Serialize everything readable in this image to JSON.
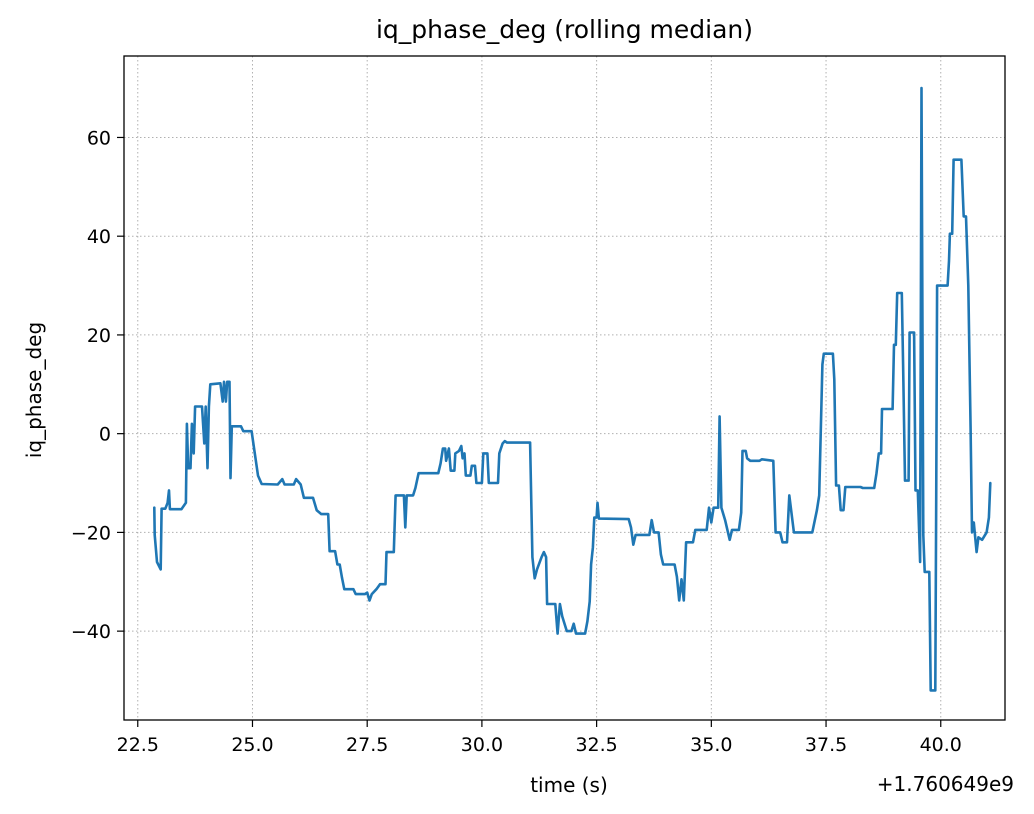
{
  "chart_data": {
    "type": "line",
    "title": "iq_phase_deg (rolling median)",
    "xlabel": "time (s)",
    "ylabel": "iq_phase_deg",
    "x_offset_label": "+1.760649e9",
    "xlim": [
      22.2,
      41.4
    ],
    "ylim": [
      -58,
      76.5
    ],
    "x_ticks": [
      22.5,
      25.0,
      27.5,
      30.0,
      32.5,
      35.0,
      37.5,
      40.0
    ],
    "x_tick_labels": [
      "22.5",
      "25.0",
      "27.5",
      "30.0",
      "32.5",
      "35.0",
      "37.5",
      "40.0"
    ],
    "y_ticks": [
      -40,
      -20,
      0,
      20,
      40,
      60
    ],
    "y_tick_labels": [
      "−40",
      "−20",
      "0",
      "20",
      "40",
      "60"
    ],
    "grid": true,
    "series": [
      {
        "color": "#1f77b4",
        "points": [
          [
            22.86,
            -15
          ],
          [
            22.87,
            -20.5
          ],
          [
            22.92,
            -26
          ],
          [
            23.0,
            -27.5
          ],
          [
            23.02,
            -15.2
          ],
          [
            23.1,
            -15.2
          ],
          [
            23.15,
            -14
          ],
          [
            23.18,
            -11.5
          ],
          [
            23.2,
            -15.3
          ],
          [
            23.45,
            -15.3
          ],
          [
            23.55,
            -14
          ],
          [
            23.57,
            2
          ],
          [
            23.6,
            -7
          ],
          [
            23.65,
            -7
          ],
          [
            23.68,
            2
          ],
          [
            23.72,
            -4
          ],
          [
            23.75,
            5.5
          ],
          [
            23.9,
            5.5
          ],
          [
            23.95,
            -2
          ],
          [
            23.98,
            5.5
          ],
          [
            24.02,
            -7
          ],
          [
            24.05,
            5.5
          ],
          [
            24.08,
            10
          ],
          [
            24.3,
            10.2
          ],
          [
            24.35,
            6.5
          ],
          [
            24.38,
            10.5
          ],
          [
            24.42,
            6.5
          ],
          [
            24.45,
            10.5
          ],
          [
            24.5,
            10.5
          ],
          [
            24.52,
            -9
          ],
          [
            24.55,
            1.5
          ],
          [
            24.75,
            1.5
          ],
          [
            24.8,
            0.5
          ],
          [
            24.98,
            0.5
          ],
          [
            25.05,
            -4
          ],
          [
            25.12,
            -8.5
          ],
          [
            25.2,
            -10.2
          ],
          [
            25.55,
            -10.3
          ],
          [
            25.65,
            -9.2
          ],
          [
            25.7,
            -10.3
          ],
          [
            25.9,
            -10.3
          ],
          [
            25.95,
            -9.2
          ],
          [
            26.05,
            -10.3
          ],
          [
            26.12,
            -13
          ],
          [
            26.32,
            -13
          ],
          [
            26.4,
            -15.5
          ],
          [
            26.5,
            -16.3
          ],
          [
            26.65,
            -16.3
          ],
          [
            26.68,
            -23.8
          ],
          [
            26.8,
            -23.8
          ],
          [
            26.85,
            -26.5
          ],
          [
            26.9,
            -26.5
          ],
          [
            26.95,
            -29.2
          ],
          [
            27.0,
            -31.5
          ],
          [
            27.2,
            -31.5
          ],
          [
            27.25,
            -32.5
          ],
          [
            27.45,
            -32.5
          ],
          [
            27.5,
            -32.2
          ],
          [
            27.55,
            -33.8
          ],
          [
            27.6,
            -32.5
          ],
          [
            27.7,
            -31.5
          ],
          [
            27.78,
            -30.5
          ],
          [
            27.9,
            -30.5
          ],
          [
            27.92,
            -24
          ],
          [
            28.08,
            -24
          ],
          [
            28.12,
            -12.5
          ],
          [
            28.3,
            -12.5
          ],
          [
            28.33,
            -19
          ],
          [
            28.36,
            -12.5
          ],
          [
            28.5,
            -12.5
          ],
          [
            28.55,
            -11
          ],
          [
            28.62,
            -8
          ],
          [
            29.05,
            -8
          ],
          [
            29.1,
            -6
          ],
          [
            29.15,
            -3
          ],
          [
            29.2,
            -3
          ],
          [
            29.22,
            -5.5
          ],
          [
            29.28,
            -3
          ],
          [
            29.32,
            -7.5
          ],
          [
            29.4,
            -7.5
          ],
          [
            29.42,
            -4
          ],
          [
            29.5,
            -3.5
          ],
          [
            29.55,
            -2.5
          ],
          [
            29.58,
            -5
          ],
          [
            29.62,
            -4
          ],
          [
            29.65,
            -8.5
          ],
          [
            29.75,
            -8.5
          ],
          [
            29.78,
            -6.5
          ],
          [
            29.85,
            -6.5
          ],
          [
            29.88,
            -10
          ],
          [
            30.0,
            -10
          ],
          [
            30.03,
            -4
          ],
          [
            30.12,
            -4
          ],
          [
            30.15,
            -10
          ],
          [
            30.35,
            -10
          ],
          [
            30.38,
            -4
          ],
          [
            30.45,
            -2
          ],
          [
            30.5,
            -1.5
          ],
          [
            30.55,
            -1.8
          ],
          [
            31.05,
            -1.8
          ],
          [
            31.1,
            -25
          ],
          [
            31.15,
            -29.3
          ],
          [
            31.2,
            -27.5
          ],
          [
            31.3,
            -25
          ],
          [
            31.35,
            -24
          ],
          [
            31.4,
            -25
          ],
          [
            31.42,
            -34.5
          ],
          [
            31.6,
            -34.5
          ],
          [
            31.65,
            -40.5
          ],
          [
            31.7,
            -34.5
          ],
          [
            31.75,
            -37
          ],
          [
            31.85,
            -40
          ],
          [
            31.95,
            -40
          ],
          [
            32.0,
            -38.5
          ],
          [
            32.05,
            -40.5
          ],
          [
            32.25,
            -40.5
          ],
          [
            32.3,
            -38
          ],
          [
            32.35,
            -34
          ],
          [
            32.38,
            -26.5
          ],
          [
            32.42,
            -23
          ],
          [
            32.45,
            -17
          ],
          [
            32.5,
            -17
          ],
          [
            32.52,
            -14
          ],
          [
            32.55,
            -17.2
          ],
          [
            33.2,
            -17.3
          ],
          [
            33.25,
            -19
          ],
          [
            33.3,
            -22.5
          ],
          [
            33.35,
            -20.5
          ],
          [
            33.65,
            -20.5
          ],
          [
            33.7,
            -17.5
          ],
          [
            33.75,
            -20
          ],
          [
            33.85,
            -20
          ],
          [
            33.9,
            -24.5
          ],
          [
            33.95,
            -26.5
          ],
          [
            34.2,
            -26.5
          ],
          [
            34.25,
            -29
          ],
          [
            34.3,
            -33.8
          ],
          [
            34.35,
            -29.5
          ],
          [
            34.4,
            -33.8
          ],
          [
            34.45,
            -22
          ],
          [
            34.6,
            -22
          ],
          [
            34.65,
            -19.5
          ],
          [
            34.9,
            -19.5
          ],
          [
            34.95,
            -15
          ],
          [
            35.0,
            -18
          ],
          [
            35.05,
            -15
          ],
          [
            35.15,
            -15
          ],
          [
            35.18,
            3.5
          ],
          [
            35.22,
            -15
          ],
          [
            35.3,
            -17.5
          ],
          [
            35.35,
            -19.5
          ],
          [
            35.4,
            -21.5
          ],
          [
            35.45,
            -19.5
          ],
          [
            35.6,
            -19.5
          ],
          [
            35.65,
            -16
          ],
          [
            35.68,
            -3.5
          ],
          [
            35.75,
            -3.5
          ],
          [
            35.78,
            -5
          ],
          [
            35.85,
            -5.5
          ],
          [
            36.05,
            -5.5
          ],
          [
            36.1,
            -5.2
          ],
          [
            36.35,
            -5.5
          ],
          [
            36.4,
            -20
          ],
          [
            36.5,
            -20
          ],
          [
            36.55,
            -22
          ],
          [
            36.65,
            -22
          ],
          [
            36.7,
            -12.5
          ],
          [
            36.8,
            -20
          ],
          [
            37.2,
            -20
          ],
          [
            37.3,
            -15.5
          ],
          [
            37.35,
            -12.5
          ],
          [
            37.42,
            14
          ],
          [
            37.45,
            16.2
          ],
          [
            37.65,
            16.2
          ],
          [
            37.68,
            11
          ],
          [
            37.72,
            -10.5
          ],
          [
            37.78,
            -10.5
          ],
          [
            37.82,
            -15.5
          ],
          [
            37.88,
            -15.5
          ],
          [
            37.92,
            -10.8
          ],
          [
            38.25,
            -10.8
          ],
          [
            38.3,
            -11
          ],
          [
            38.55,
            -11
          ],
          [
            38.6,
            -8
          ],
          [
            38.65,
            -4
          ],
          [
            38.7,
            -4
          ],
          [
            38.72,
            5
          ],
          [
            38.95,
            5
          ],
          [
            38.98,
            18
          ],
          [
            39.02,
            18
          ],
          [
            39.05,
            28.5
          ],
          [
            39.15,
            28.5
          ],
          [
            39.18,
            14
          ],
          [
            39.22,
            -9.5
          ],
          [
            39.3,
            -9.5
          ],
          [
            39.32,
            20.5
          ],
          [
            39.42,
            20.5
          ],
          [
            39.45,
            -11.5
          ],
          [
            39.5,
            -11.5
          ],
          [
            39.55,
            -26
          ],
          [
            39.58,
            70
          ],
          [
            39.62,
            -20.5
          ],
          [
            39.65,
            -28
          ],
          [
            39.75,
            -28
          ],
          [
            39.78,
            -52
          ],
          [
            39.88,
            -52
          ],
          [
            39.9,
            -13.5
          ],
          [
            39.92,
            30
          ],
          [
            40.15,
            30
          ],
          [
            40.18,
            35
          ],
          [
            40.2,
            40.5
          ],
          [
            40.25,
            40.5
          ],
          [
            40.28,
            55.5
          ],
          [
            40.45,
            55.5
          ],
          [
            40.5,
            44
          ],
          [
            40.55,
            44
          ],
          [
            40.6,
            30
          ],
          [
            40.65,
            1
          ],
          [
            40.68,
            -20
          ],
          [
            40.72,
            -18
          ],
          [
            40.78,
            -24
          ],
          [
            40.82,
            -21
          ],
          [
            40.9,
            -21.5
          ],
          [
            41.0,
            -20
          ],
          [
            41.05,
            -17
          ],
          [
            41.08,
            -10
          ]
        ]
      }
    ]
  }
}
